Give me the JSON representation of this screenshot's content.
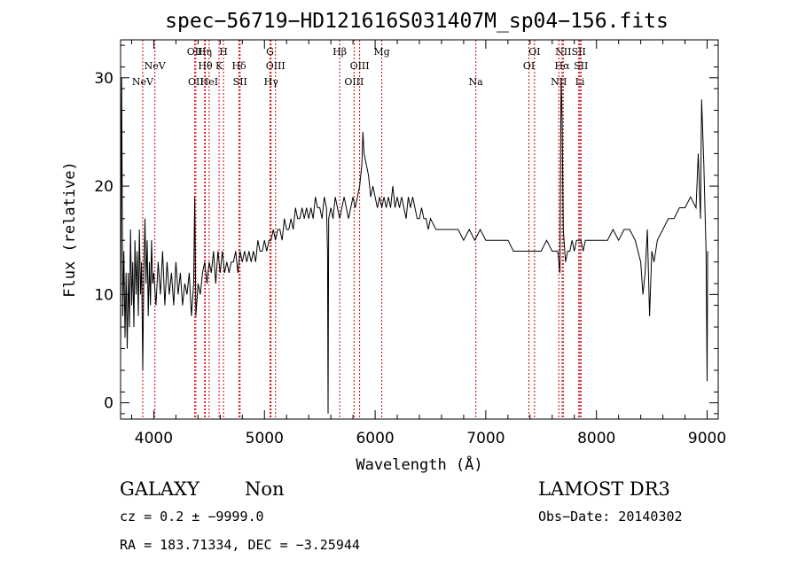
{
  "chart_data": {
    "type": "line",
    "title": "spec−56719−HD121616S031407M_sp04−156.fits",
    "xlabel": "Wavelength (Å)",
    "ylabel": "Flux (relative)",
    "xlim": [
      3700,
      9100
    ],
    "ylim": [
      -1.5,
      33.5
    ],
    "x_ticks": [
      4000,
      5000,
      6000,
      7000,
      8000,
      9000
    ],
    "x_tick_labels": [
      "4000",
      "5000",
      "6000",
      "7000",
      "8000",
      "9000"
    ],
    "y_ticks": [
      0,
      10,
      20,
      30
    ],
    "y_tick_labels": [
      "0",
      "10",
      "20",
      "30"
    ],
    "grid": false,
    "series": [
      {
        "color": "#000000",
        "points": [
          [
            3700,
            4
          ],
          [
            3710,
            30
          ],
          [
            3720,
            8
          ],
          [
            3730,
            14
          ],
          [
            3740,
            6
          ],
          [
            3750,
            12
          ],
          [
            3760,
            5
          ],
          [
            3770,
            12
          ],
          [
            3780,
            7
          ],
          [
            3790,
            16
          ],
          [
            3800,
            9
          ],
          [
            3810,
            13
          ],
          [
            3820,
            7
          ],
          [
            3830,
            15
          ],
          [
            3840,
            10
          ],
          [
            3850,
            14
          ],
          [
            3860,
            8
          ],
          [
            3870,
            16
          ],
          [
            3880,
            10
          ],
          [
            3890,
            13
          ],
          [
            3900,
            3
          ],
          [
            3910,
            12
          ],
          [
            3920,
            17
          ],
          [
            3930,
            11
          ],
          [
            3940,
            15
          ],
          [
            3950,
            8
          ],
          [
            3960,
            13
          ],
          [
            3970,
            9
          ],
          [
            3980,
            15
          ],
          [
            3990,
            11
          ],
          [
            4000,
            12
          ],
          [
            4020,
            9
          ],
          [
            4040,
            13
          ],
          [
            4060,
            10
          ],
          [
            4080,
            14
          ],
          [
            4100,
            9
          ],
          [
            4120,
            13
          ],
          [
            4140,
            10
          ],
          [
            4160,
            12
          ],
          [
            4180,
            9
          ],
          [
            4200,
            13
          ],
          [
            4220,
            10
          ],
          [
            4240,
            12
          ],
          [
            4260,
            9
          ],
          [
            4280,
            11
          ],
          [
            4300,
            10
          ],
          [
            4320,
            12
          ],
          [
            4340,
            8
          ],
          [
            4360,
            11
          ],
          [
            4370,
            19
          ],
          [
            4380,
            8
          ],
          [
            4400,
            11
          ],
          [
            4420,
            10
          ],
          [
            4440,
            12
          ],
          [
            4460,
            13
          ],
          [
            4480,
            11
          ],
          [
            4500,
            13
          ],
          [
            4520,
            12
          ],
          [
            4540,
            14
          ],
          [
            4560,
            11
          ],
          [
            4580,
            14
          ],
          [
            4600,
            12
          ],
          [
            4620,
            14
          ],
          [
            4640,
            12
          ],
          [
            4660,
            13
          ],
          [
            4680,
            12
          ],
          [
            4700,
            13
          ],
          [
            4720,
            13
          ],
          [
            4740,
            14
          ],
          [
            4760,
            12
          ],
          [
            4780,
            14
          ],
          [
            4800,
            13
          ],
          [
            4820,
            14
          ],
          [
            4840,
            13
          ],
          [
            4860,
            14
          ],
          [
            4880,
            13
          ],
          [
            4900,
            14
          ],
          [
            4920,
            13
          ],
          [
            4940,
            15
          ],
          [
            4960,
            14
          ],
          [
            4980,
            14
          ],
          [
            5000,
            15
          ],
          [
            5020,
            14
          ],
          [
            5040,
            15
          ],
          [
            5060,
            15
          ],
          [
            5080,
            16
          ],
          [
            5100,
            15
          ],
          [
            5120,
            16
          ],
          [
            5140,
            16
          ],
          [
            5160,
            15
          ],
          [
            5180,
            17
          ],
          [
            5200,
            16
          ],
          [
            5220,
            16
          ],
          [
            5240,
            17
          ],
          [
            5260,
            16
          ],
          [
            5280,
            18
          ],
          [
            5300,
            17
          ],
          [
            5320,
            17
          ],
          [
            5340,
            18
          ],
          [
            5360,
            17
          ],
          [
            5380,
            18
          ],
          [
            5400,
            17
          ],
          [
            5420,
            18
          ],
          [
            5440,
            17
          ],
          [
            5460,
            19
          ],
          [
            5480,
            18
          ],
          [
            5500,
            18
          ],
          [
            5520,
            17
          ],
          [
            5540,
            19
          ],
          [
            5560,
            18
          ],
          [
            5570,
            14
          ],
          [
            5575,
            -1
          ],
          [
            5580,
            17
          ],
          [
            5600,
            18
          ],
          [
            5620,
            17
          ],
          [
            5640,
            19
          ],
          [
            5660,
            18
          ],
          [
            5680,
            17
          ],
          [
            5700,
            18
          ],
          [
            5720,
            19
          ],
          [
            5740,
            18
          ],
          [
            5760,
            17
          ],
          [
            5780,
            18
          ],
          [
            5800,
            19
          ],
          [
            5820,
            18
          ],
          [
            5840,
            19
          ],
          [
            5860,
            20
          ],
          [
            5880,
            22
          ],
          [
            5890,
            25
          ],
          [
            5900,
            23
          ],
          [
            5920,
            22
          ],
          [
            5940,
            21
          ],
          [
            5960,
            19
          ],
          [
            5980,
            20
          ],
          [
            6000,
            19
          ],
          [
            6020,
            18
          ],
          [
            6040,
            19
          ],
          [
            6060,
            18
          ],
          [
            6080,
            19
          ],
          [
            6100,
            18
          ],
          [
            6120,
            19
          ],
          [
            6140,
            18
          ],
          [
            6160,
            20
          ],
          [
            6180,
            18
          ],
          [
            6200,
            19
          ],
          [
            6220,
            18
          ],
          [
            6240,
            19
          ],
          [
            6260,
            18
          ],
          [
            6280,
            17
          ],
          [
            6300,
            19
          ],
          [
            6320,
            18
          ],
          [
            6340,
            19
          ],
          [
            6360,
            18
          ],
          [
            6380,
            17
          ],
          [
            6400,
            17
          ],
          [
            6420,
            18
          ],
          [
            6440,
            17
          ],
          [
            6460,
            17
          ],
          [
            6480,
            16
          ],
          [
            6500,
            17
          ],
          [
            6550,
            16
          ],
          [
            6600,
            16
          ],
          [
            6650,
            16
          ],
          [
            6700,
            16
          ],
          [
            6750,
            16
          ],
          [
            6800,
            15
          ],
          [
            6850,
            16
          ],
          [
            6900,
            15
          ],
          [
            6950,
            16
          ],
          [
            7000,
            15
          ],
          [
            7050,
            15
          ],
          [
            7100,
            15
          ],
          [
            7150,
            15
          ],
          [
            7200,
            15
          ],
          [
            7250,
            14
          ],
          [
            7300,
            14
          ],
          [
            7350,
            14
          ],
          [
            7400,
            14
          ],
          [
            7450,
            14
          ],
          [
            7500,
            14
          ],
          [
            7550,
            15
          ],
          [
            7600,
            14
          ],
          [
            7650,
            14
          ],
          [
            7670,
            12
          ],
          [
            7680,
            30
          ],
          [
            7690,
            26
          ],
          [
            7700,
            16
          ],
          [
            7720,
            13
          ],
          [
            7740,
            14
          ],
          [
            7760,
            14
          ],
          [
            7780,
            15
          ],
          [
            7800,
            14
          ],
          [
            7820,
            15
          ],
          [
            7840,
            15
          ],
          [
            7860,
            15
          ],
          [
            7880,
            14
          ],
          [
            7900,
            15
          ],
          [
            7950,
            15
          ],
          [
            8000,
            15
          ],
          [
            8050,
            15
          ],
          [
            8100,
            15
          ],
          [
            8150,
            16
          ],
          [
            8200,
            15
          ],
          [
            8250,
            16
          ],
          [
            8300,
            16
          ],
          [
            8350,
            15
          ],
          [
            8400,
            13
          ],
          [
            8420,
            10
          ],
          [
            8440,
            12
          ],
          [
            8460,
            16
          ],
          [
            8480,
            8
          ],
          [
            8500,
            14
          ],
          [
            8520,
            13
          ],
          [
            8550,
            15
          ],
          [
            8600,
            16
          ],
          [
            8650,
            17
          ],
          [
            8700,
            17
          ],
          [
            8750,
            18
          ],
          [
            8800,
            18
          ],
          [
            8850,
            19
          ],
          [
            8900,
            18
          ],
          [
            8920,
            23
          ],
          [
            8940,
            17
          ],
          [
            8950,
            28
          ],
          [
            8970,
            22
          ],
          [
            8990,
            14
          ],
          [
            9000,
            2
          ],
          [
            9005,
            14
          ]
        ]
      }
    ],
    "emission_lines": [
      {
        "name": "NeV",
        "wavelength": 3900,
        "row": 3
      },
      {
        "name": "NeV",
        "wavelength": 4010,
        "row": 2
      },
      {
        "name": "OII",
        "wavelength": 4370,
        "row": 1
      },
      {
        "name": "OII",
        "wavelength": 4380,
        "row": 3
      },
      {
        "name": "Hη",
        "wavelength": 4460,
        "row": 1
      },
      {
        "name": "Hθ",
        "wavelength": 4465,
        "row": 2
      },
      {
        "name": "HeI",
        "wavelength": 4500,
        "row": 3
      },
      {
        "name": "K",
        "wavelength": 4590,
        "row": 2
      },
      {
        "name": "H",
        "wavelength": 4630,
        "row": 1
      },
      {
        "name": "Hδ",
        "wavelength": 4770,
        "row": 2
      },
      {
        "name": "SII",
        "wavelength": 4780,
        "row": 3
      },
      {
        "name": "G",
        "wavelength": 5050,
        "row": 1
      },
      {
        "name": "Hγ",
        "wavelength": 5060,
        "row": 3
      },
      {
        "name": "OIII",
        "wavelength": 5100,
        "row": 2
      },
      {
        "name": "Hβ",
        "wavelength": 5680,
        "row": 1
      },
      {
        "name": "OIII",
        "wavelength": 5810,
        "row": 3
      },
      {
        "name": "OIII",
        "wavelength": 5860,
        "row": 2
      },
      {
        "name": "Mg",
        "wavelength": 6060,
        "row": 1
      },
      {
        "name": "Na",
        "wavelength": 6910,
        "row": 3
      },
      {
        "name": "OI",
        "wavelength": 7390,
        "row": 2
      },
      {
        "name": "OI",
        "wavelength": 7440,
        "row": 1
      },
      {
        "name": "NII",
        "wavelength": 7660,
        "row": 3
      },
      {
        "name": "NII",
        "wavelength": 7700,
        "row": 1
      },
      {
        "name": "Hα",
        "wavelength": 7690,
        "row": 2
      },
      {
        "name": "SII",
        "wavelength": 7840,
        "row": 1
      },
      {
        "name": "SII",
        "wavelength": 7860,
        "row": 2
      },
      {
        "name": "Li",
        "wavelength": 7850,
        "row": 3
      }
    ],
    "line_marker_color": "#cc0000"
  },
  "footer": {
    "class_label": "GALAXY",
    "subclass_label": "Non",
    "survey_label": "LAMOST DR3",
    "cz_text": "cz = 0.2 ± −9999.0",
    "obs_date_text": "Obs−Date: 20140302",
    "radec_text": "RA = 183.71334, DEC =  −3.25944"
  }
}
